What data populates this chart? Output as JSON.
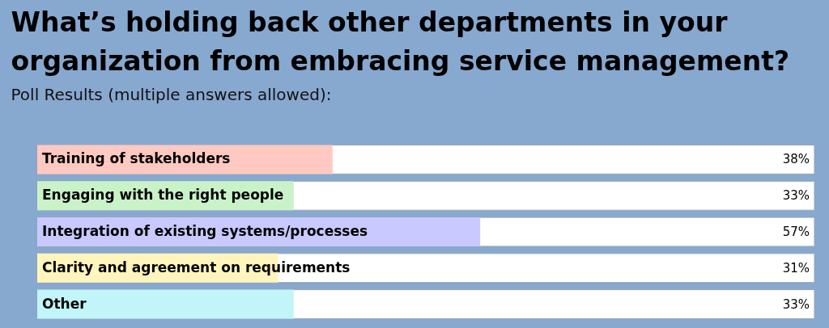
{
  "chart_data": {
    "type": "bar",
    "orientation": "horizontal",
    "title": [
      "What’s holding back other departments in your",
      "organization from embracing service management?"
    ],
    "subtitle": "Poll Results (multiple answers allowed):",
    "categories": [
      "Training of stakeholders",
      "Engaging with the right people",
      "Integration of existing systems/processes",
      "Clarity and agreement on requirements",
      "Other"
    ],
    "values": [
      38,
      33,
      57,
      31,
      33
    ],
    "value_labels": [
      "38%",
      "33%",
      "57%",
      "31%",
      "33%"
    ],
    "colors": [
      "#ffc9c2",
      "#c9f2c9",
      "#c9c9ff",
      "#fff5bd",
      "#c2f5f8"
    ],
    "xlim": [
      0,
      100
    ]
  }
}
